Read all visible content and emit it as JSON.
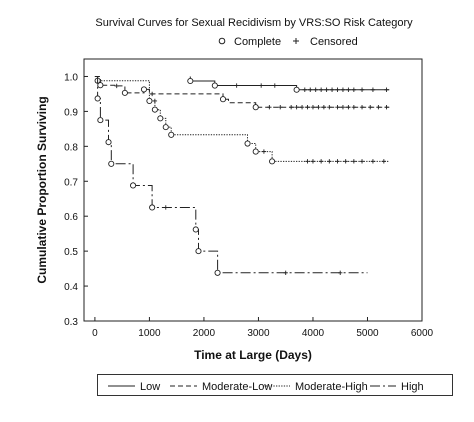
{
  "chart_data": {
    "type": "line",
    "title": "Survival Curves for Sexual Recidivism by VRS:SO Risk Category",
    "xlabel": "Time at Large (Days)",
    "ylabel": "Cumulative Proportion Surviving",
    "xlim": [
      -200,
      6000
    ],
    "ylim": [
      0.3,
      1.05
    ],
    "xticks": [
      "0",
      "1000",
      "2000",
      "3000",
      "4000",
      "5000",
      "6000"
    ],
    "yticks": [
      "0.3",
      "0.4",
      "0.5",
      "0.6",
      "0.7",
      "0.8",
      "0.9",
      "1.0"
    ],
    "grid": false,
    "marker_legend": [
      {
        "symbol": "o",
        "label": "Complete"
      },
      {
        "symbol": "+",
        "label": "Censored"
      }
    ],
    "series": [
      {
        "name": "Low",
        "dash": "solid",
        "steps": [
          [
            1750,
            1.0
          ],
          [
            1750,
            0.987
          ],
          [
            2200,
            0.987
          ],
          [
            2200,
            0.974
          ],
          [
            3700,
            0.974
          ],
          [
            3700,
            0.962
          ],
          [
            5400,
            0.962
          ]
        ],
        "complete": [
          [
            1750,
            0.987
          ],
          [
            2200,
            0.974
          ],
          [
            3700,
            0.962
          ]
        ],
        "censored": [
          [
            2600,
            0.974
          ],
          [
            3050,
            0.974
          ],
          [
            3300,
            0.974
          ],
          [
            3850,
            0.962
          ],
          [
            3950,
            0.962
          ],
          [
            4050,
            0.962
          ],
          [
            4150,
            0.962
          ],
          [
            4250,
            0.962
          ],
          [
            4350,
            0.962
          ],
          [
            4450,
            0.962
          ],
          [
            4550,
            0.962
          ],
          [
            4650,
            0.962
          ],
          [
            4750,
            0.962
          ],
          [
            4900,
            0.962
          ],
          [
            5100,
            0.962
          ],
          [
            5350,
            0.962
          ]
        ]
      },
      {
        "name": "Moderate-Low",
        "dash": "dashed",
        "steps": [
          [
            0,
            1.0
          ],
          [
            100,
            1.0
          ],
          [
            100,
            0.975
          ],
          [
            400,
            0.975
          ],
          [
            400,
            0.973
          ],
          [
            550,
            0.973
          ],
          [
            550,
            0.953
          ],
          [
            900,
            0.953
          ],
          [
            900,
            0.963
          ],
          [
            1000,
            0.963
          ],
          [
            1000,
            0.95
          ],
          [
            1100,
            0.95
          ],
          [
            1100,
            0.95
          ],
          [
            2350,
            0.95
          ],
          [
            2350,
            0.935
          ],
          [
            2450,
            0.935
          ],
          [
            2450,
            0.925
          ],
          [
            2950,
            0.925
          ],
          [
            2950,
            0.912
          ],
          [
            5400,
            0.912
          ]
        ],
        "complete": [
          [
            100,
            0.975
          ],
          [
            550,
            0.953
          ],
          [
            900,
            0.963
          ],
          [
            2350,
            0.935
          ],
          [
            2950,
            0.912
          ]
        ],
        "censored": [
          [
            400,
            0.973
          ],
          [
            1050,
            0.95
          ],
          [
            3200,
            0.912
          ],
          [
            3400,
            0.912
          ],
          [
            3600,
            0.912
          ],
          [
            3700,
            0.912
          ],
          [
            3800,
            0.912
          ],
          [
            3900,
            0.912
          ],
          [
            4000,
            0.912
          ],
          [
            4100,
            0.912
          ],
          [
            4200,
            0.912
          ],
          [
            4300,
            0.912
          ],
          [
            4450,
            0.912
          ],
          [
            4550,
            0.912
          ],
          [
            4650,
            0.912
          ],
          [
            4750,
            0.912
          ],
          [
            4900,
            0.912
          ],
          [
            5050,
            0.912
          ],
          [
            5200,
            0.912
          ],
          [
            5350,
            0.912
          ]
        ]
      },
      {
        "name": "Moderate-High",
        "dash": "dotted",
        "steps": [
          [
            0,
            1.0
          ],
          [
            50,
            1.0
          ],
          [
            50,
            0.988
          ],
          [
            1000,
            0.988
          ],
          [
            1000,
            0.93
          ],
          [
            1100,
            0.93
          ],
          [
            1100,
            0.905
          ],
          [
            1200,
            0.905
          ],
          [
            1200,
            0.88
          ],
          [
            1300,
            0.88
          ],
          [
            1300,
            0.855
          ],
          [
            1400,
            0.855
          ],
          [
            1400,
            0.833
          ],
          [
            2800,
            0.833
          ],
          [
            2800,
            0.808
          ],
          [
            2950,
            0.808
          ],
          [
            2950,
            0.785
          ],
          [
            3250,
            0.785
          ],
          [
            3250,
            0.757
          ],
          [
            5400,
            0.757
          ]
        ],
        "complete": [
          [
            50,
            0.988
          ],
          [
            1000,
            0.93
          ],
          [
            1100,
            0.905
          ],
          [
            1200,
            0.88
          ],
          [
            1300,
            0.855
          ],
          [
            1400,
            0.833
          ],
          [
            2800,
            0.808
          ],
          [
            2950,
            0.785
          ],
          [
            3250,
            0.757
          ]
        ],
        "censored": [
          [
            1100,
            0.93
          ],
          [
            3100,
            0.785
          ],
          [
            3900,
            0.757
          ],
          [
            4000,
            0.757
          ],
          [
            4150,
            0.757
          ],
          [
            4300,
            0.757
          ],
          [
            4450,
            0.757
          ],
          [
            4600,
            0.757
          ],
          [
            4750,
            0.757
          ],
          [
            4900,
            0.757
          ],
          [
            5100,
            0.757
          ],
          [
            5300,
            0.757
          ]
        ]
      },
      {
        "name": "High",
        "dash": "dashdot",
        "steps": [
          [
            0,
            1.0
          ],
          [
            50,
            1.0
          ],
          [
            50,
            0.937
          ],
          [
            100,
            0.937
          ],
          [
            100,
            0.875
          ],
          [
            250,
            0.875
          ],
          [
            250,
            0.812
          ],
          [
            300,
            0.812
          ],
          [
            300,
            0.75
          ],
          [
            700,
            0.75
          ],
          [
            700,
            0.688
          ],
          [
            1050,
            0.688
          ],
          [
            1050,
            0.625
          ],
          [
            1850,
            0.625
          ],
          [
            1850,
            0.562
          ],
          [
            1900,
            0.562
          ],
          [
            1900,
            0.5
          ],
          [
            2250,
            0.5
          ],
          [
            2250,
            0.438
          ],
          [
            5000,
            0.438
          ]
        ],
        "complete": [
          [
            50,
            0.937
          ],
          [
            100,
            0.875
          ],
          [
            250,
            0.812
          ],
          [
            300,
            0.75
          ],
          [
            700,
            0.688
          ],
          [
            1050,
            0.625
          ],
          [
            1850,
            0.562
          ],
          [
            1900,
            0.5
          ],
          [
            2250,
            0.438
          ]
        ],
        "censored": [
          [
            1300,
            0.625
          ],
          [
            3500,
            0.438
          ],
          [
            4500,
            0.438
          ]
        ]
      }
    ],
    "legend": [
      {
        "label": "Low",
        "dash": "solid"
      },
      {
        "label": "Moderate-Low",
        "dash": "dashed"
      },
      {
        "label": "Moderate-High",
        "dash": "dotted"
      },
      {
        "label": "High",
        "dash": "dashdot"
      }
    ]
  }
}
